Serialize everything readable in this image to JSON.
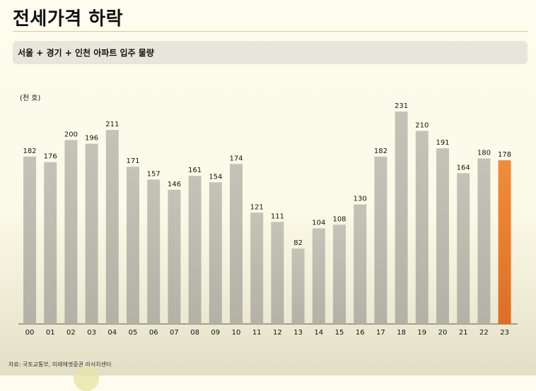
{
  "header": {
    "title": "전세가격 하락"
  },
  "subtitle": "서울 + 경기 + 인천 아파트 입주 물량",
  "source": "자료: 국토교통부, 미래에셋증권 리서치센터",
  "chart_data": {
    "type": "bar",
    "title": "서울 + 경기 + 인천 아파트 입주 물량",
    "unit_label": "(천 호)",
    "categories": [
      "00",
      "01",
      "02",
      "03",
      "04",
      "05",
      "06",
      "07",
      "08",
      "09",
      "10",
      "11",
      "12",
      "13",
      "14",
      "15",
      "16",
      "17",
      "18",
      "19",
      "20",
      "21",
      "22",
      "23"
    ],
    "values": [
      182,
      176,
      200,
      196,
      211,
      171,
      157,
      146,
      161,
      154,
      174,
      121,
      111,
      82,
      104,
      108,
      130,
      182,
      231,
      210,
      191,
      164,
      180,
      178
    ],
    "ylim": [
      0,
      245
    ],
    "grid": false,
    "colors": {
      "default_bar": "#c0bfb3",
      "highlight_bar": "#ef8a3a",
      "highlight_bar_bottom": "#d9702a"
    },
    "highlight_index": 23
  }
}
